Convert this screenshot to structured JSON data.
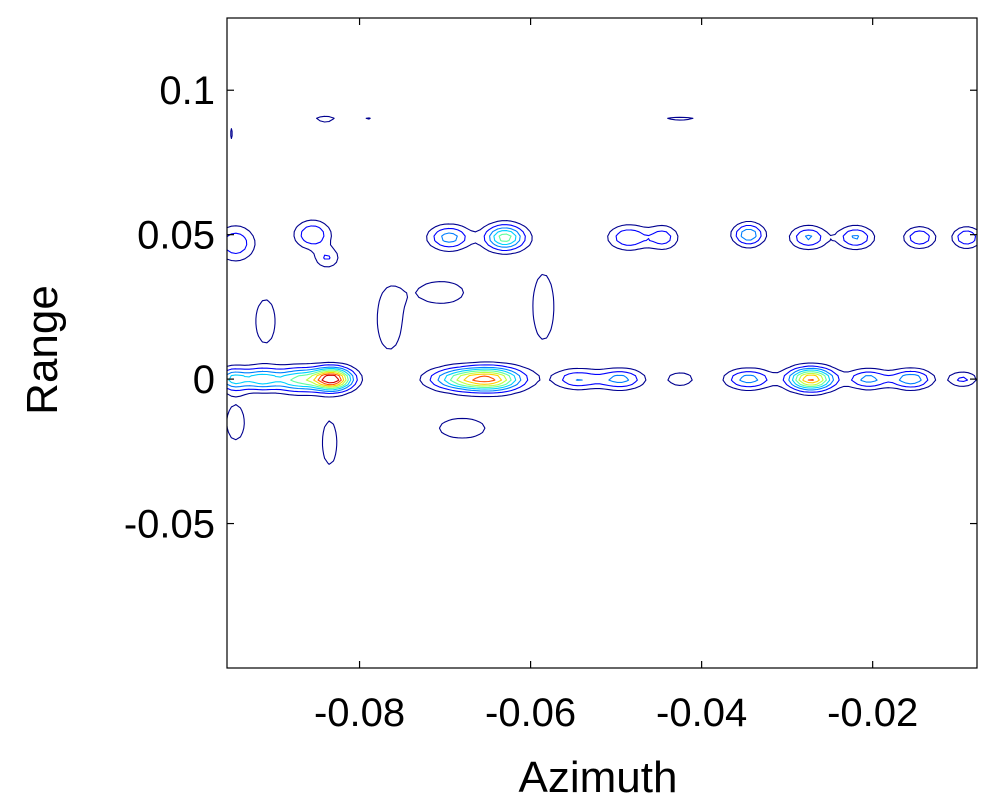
{
  "chart_data": {
    "type": "contour",
    "title": "",
    "xlabel": "Azimuth",
    "ylabel": "Range",
    "xlim": [
      -0.0955,
      -0.0078
    ],
    "ylim": [
      -0.1,
      0.125
    ],
    "xticks": [
      -0.08,
      -0.06,
      -0.04,
      -0.02
    ],
    "xtick_labels": [
      "-0.08",
      "-0.06",
      "-0.04",
      "-0.02"
    ],
    "yticks": [
      -0.05,
      0,
      0.05,
      0.1
    ],
    "ytick_labels": [
      "-0.05",
      "0",
      "0.05",
      "0.1"
    ],
    "grid": false,
    "colormap": [
      "#00008f",
      "#0000ff",
      "#007fff",
      "#00d0ff",
      "#60ff9f",
      "#bfff3f",
      "#ffd000",
      "#ff5000",
      "#d00000",
      "#800000"
    ],
    "blobs": [
      {
        "x": -0.0832,
        "y": 0.0,
        "sx": 0.0016,
        "sy": 0.0026,
        "a": 1.0
      },
      {
        "x": -0.0872,
        "y": -0.0002,
        "sx": 0.0018,
        "sy": 0.0028,
        "a": 0.5
      },
      {
        "x": -0.0915,
        "y": 0.0,
        "sx": 0.0016,
        "sy": 0.0026,
        "a": 0.45
      },
      {
        "x": -0.0948,
        "y": 0.0,
        "sx": 0.0012,
        "sy": 0.0026,
        "a": 0.4
      },
      {
        "x": -0.0645,
        "y": 0.0,
        "sx": 0.0025,
        "sy": 0.0028,
        "a": 0.72
      },
      {
        "x": -0.0685,
        "y": 0.0,
        "sx": 0.0025,
        "sy": 0.0026,
        "a": 0.42
      },
      {
        "x": -0.0545,
        "y": 0.0,
        "sx": 0.0018,
        "sy": 0.0023,
        "a": 0.3
      },
      {
        "x": -0.0495,
        "y": 0.0,
        "sx": 0.0018,
        "sy": 0.0023,
        "a": 0.35
      },
      {
        "x": -0.0425,
        "y": 0.0,
        "sx": 0.0012,
        "sy": 0.0018,
        "a": 0.18
      },
      {
        "x": -0.0345,
        "y": 0.0,
        "sx": 0.0018,
        "sy": 0.0023,
        "a": 0.36
      },
      {
        "x": -0.0272,
        "y": 0.0,
        "sx": 0.0018,
        "sy": 0.0026,
        "a": 0.82
      },
      {
        "x": -0.0205,
        "y": 0.0,
        "sx": 0.0016,
        "sy": 0.0022,
        "a": 0.35
      },
      {
        "x": -0.0155,
        "y": 0.0,
        "sx": 0.0016,
        "sy": 0.0022,
        "a": 0.4
      },
      {
        "x": -0.0095,
        "y": 0.0,
        "sx": 0.0012,
        "sy": 0.0018,
        "a": 0.22
      },
      {
        "x": -0.0945,
        "y": 0.047,
        "sx": 0.0015,
        "sy": 0.004,
        "a": 0.28
      },
      {
        "x": -0.0855,
        "y": 0.05,
        "sx": 0.0014,
        "sy": 0.0032,
        "a": 0.3
      },
      {
        "x": -0.0838,
        "y": 0.042,
        "sx": 0.001,
        "sy": 0.0025,
        "a": 0.2
      },
      {
        "x": -0.0695,
        "y": 0.049,
        "sx": 0.0016,
        "sy": 0.0028,
        "a": 0.36
      },
      {
        "x": -0.063,
        "y": 0.049,
        "sx": 0.0016,
        "sy": 0.003,
        "a": 0.56
      },
      {
        "x": -0.0485,
        "y": 0.049,
        "sx": 0.0016,
        "sy": 0.0028,
        "a": 0.3
      },
      {
        "x": -0.0445,
        "y": 0.049,
        "sx": 0.0012,
        "sy": 0.0028,
        "a": 0.25
      },
      {
        "x": -0.0345,
        "y": 0.05,
        "sx": 0.0012,
        "sy": 0.0026,
        "a": 0.4
      },
      {
        "x": -0.0275,
        "y": 0.049,
        "sx": 0.0014,
        "sy": 0.0026,
        "a": 0.32
      },
      {
        "x": -0.022,
        "y": 0.049,
        "sx": 0.0014,
        "sy": 0.0026,
        "a": 0.32
      },
      {
        "x": -0.0145,
        "y": 0.049,
        "sx": 0.0012,
        "sy": 0.0024,
        "a": 0.3
      },
      {
        "x": -0.009,
        "y": 0.049,
        "sx": 0.0011,
        "sy": 0.0024,
        "a": 0.3
      },
      {
        "x": -0.0765,
        "y": 0.02,
        "sx": 0.0013,
        "sy": 0.009,
        "a": 0.16
      },
      {
        "x": -0.091,
        "y": 0.02,
        "sx": 0.0012,
        "sy": 0.008,
        "a": 0.14
      },
      {
        "x": -0.0835,
        "y": -0.022,
        "sx": 0.0009,
        "sy": 0.008,
        "a": 0.14
      },
      {
        "x": -0.0705,
        "y": 0.03,
        "sx": 0.0035,
        "sy": 0.005,
        "a": 0.12
      },
      {
        "x": -0.0585,
        "y": 0.025,
        "sx": 0.0013,
        "sy": 0.012,
        "a": 0.14
      },
      {
        "x": -0.068,
        "y": -0.017,
        "sx": 0.0035,
        "sy": 0.0045,
        "a": 0.12
      },
      {
        "x": -0.0945,
        "y": -0.015,
        "sx": 0.0012,
        "sy": 0.007,
        "a": 0.13
      },
      {
        "x": -0.084,
        "y": 0.09,
        "sx": 0.0014,
        "sy": 0.0015,
        "a": 0.12
      },
      {
        "x": -0.079,
        "y": 0.09,
        "sx": 0.0008,
        "sy": 0.0012,
        "a": 0.1
      },
      {
        "x": -0.0895,
        "y": 0.09,
        "sx": 0.0005,
        "sy": 0.001,
        "a": 0.1
      },
      {
        "x": -0.0425,
        "y": 0.09,
        "sx": 0.0025,
        "sy": 0.0012,
        "a": 0.11
      },
      {
        "x": -0.095,
        "y": 0.085,
        "sx": 0.0004,
        "sy": 0.004,
        "a": 0.1
      }
    ],
    "levels": [
      0.09,
      0.19,
      0.3,
      0.4,
      0.5,
      0.6,
      0.7,
      0.8,
      0.9
    ]
  }
}
